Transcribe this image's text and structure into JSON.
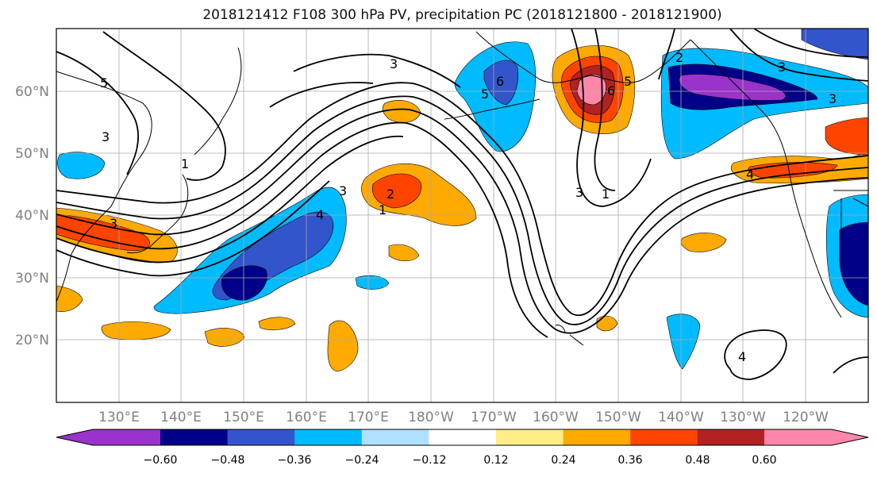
{
  "title": "2018121412 F108 300 hPa PV, precipitation PC (2018121800 - 2018121900)",
  "map": {
    "lon_labels": [
      "130°E",
      "140°E",
      "150°E",
      "160°E",
      "170°E",
      "180°W",
      "170°W",
      "160°W",
      "150°W",
      "140°W",
      "130°W",
      "120°W"
    ],
    "lat_labels": [
      "60°N",
      "50°N",
      "40°N",
      "30°N",
      "20°N"
    ],
    "contour_labels": [
      "5",
      "3",
      "3",
      "6",
      "5",
      "3",
      "2",
      "1",
      "4",
      "3",
      "2",
      "6",
      "5",
      "3",
      "3",
      "4",
      "4",
      "1",
      "1",
      "3"
    ],
    "colors": {
      "neg": [
        "#9933cc",
        "#000088",
        "#3355cc",
        "#00bbff",
        "#b0e0ff"
      ],
      "pos": [
        "#ffee88",
        "#ffaa00",
        "#ff4400",
        "#b22222",
        "#ff88aa"
      ],
      "line": "#000000",
      "coast": "#000000",
      "grid": "#aaaaaa"
    }
  },
  "colorbar": {
    "colors": [
      "#9933cc",
      "#000088",
      "#3355cc",
      "#00bbff",
      "#b0e0ff",
      "#ffffff",
      "#ffee88",
      "#ffaa00",
      "#ff4400",
      "#b22222",
      "#ff88aa"
    ],
    "ticks": [
      "−0.60",
      "−0.48",
      "−0.36",
      "−0.24",
      "−0.12",
      "0.12",
      "0.24",
      "0.36",
      "0.48",
      "0.60"
    ]
  }
}
